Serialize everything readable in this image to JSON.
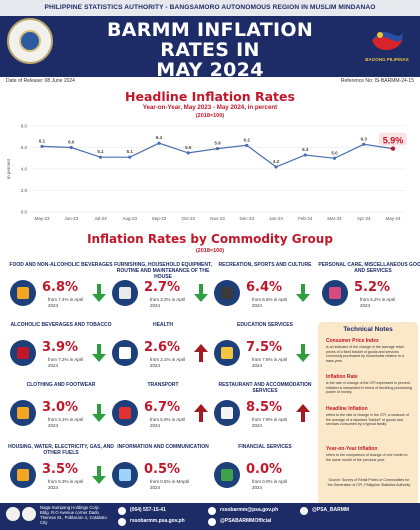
{
  "header": {
    "agency": "PHILIPPINE STATISTICS AUTHORITY - BANGSAMORO AUTONOMOUS REGION IN MUSLIM MINDANAO",
    "title_line1": "BARMM INFLATION RATES IN",
    "title_line2": "MAY 2024",
    "seal_caption": "BAGONG PILIPINAS"
  },
  "meta": {
    "release": "Date of Release: 08 June 2024",
    "reference": "Reference No: IS-BARMM-24-15"
  },
  "headline": {
    "title": "Headline Inflation Rates",
    "subtitle": "Year-on-Year, May 2023 - May 2024, in percent",
    "base": "(2018=100)"
  },
  "chart_data": {
    "type": "line",
    "ylabel": "in percent",
    "ylim": [
      0,
      8
    ],
    "yticks": [
      "0.0",
      "2.0",
      "4.0",
      "6.0",
      "8.0"
    ],
    "categories": [
      "May-23",
      "Jun-23",
      "Jul-23",
      "Aug-23",
      "Sep-23",
      "Oct-23",
      "Nov-23",
      "Dec-23",
      "Jan-24",
      "Feb-24",
      "Mar-24",
      "Apr-24",
      "May-24"
    ],
    "values": [
      6.1,
      6.0,
      5.1,
      5.1,
      6.4,
      5.5,
      5.9,
      6.2,
      4.2,
      5.3,
      5.0,
      6.3,
      5.9
    ],
    "labels": [
      "6.1",
      "6.0",
      "5.1",
      "5.1",
      "6.4",
      "5.5",
      "5.9",
      "6.2",
      "4.2",
      "5.3",
      "5.0",
      "6.3",
      "5.9%"
    ],
    "color": "#4a6fb0",
    "grid": true
  },
  "commodity": {
    "title": "Inflation Rates by Commodity Group",
    "base": "(2018=100)"
  },
  "groups": [
    {
      "title": "FOOD AND NON-ALCOHOLIC BEVERAGES",
      "value": "6.8%",
      "from": "from 7.4% in April 2024",
      "dir": "down",
      "icon": "food-basket-icon"
    },
    {
      "title": "FURNISHING, HOUSEHOLD EQUIPMENT, ROUTINE AND MAINTENANCE OF THE HOUSE",
      "value": "2.7%",
      "from": "from 3.2% in April 2024",
      "dir": "down",
      "icon": "washing-machine-icon"
    },
    {
      "title": "RECREATION, SPORTS AND CULTURE",
      "value": "6.4%",
      "from": "from 6.6% in April 2024",
      "dir": "down",
      "icon": "gamepad-icon"
    },
    {
      "title": "PERSONAL CARE, MISCELLANEOUS GOODS AND SERVICES",
      "value": "5.2%",
      "from": "from 5.2% in April 2024",
      "dir": "none",
      "icon": "cosmetics-icon"
    },
    {
      "title": "ALCOHOLIC BEVERAGES AND TOBACCO",
      "value": "3.9%",
      "from": "from 7.2% in April 2024",
      "dir": "down",
      "icon": "wine-glass-icon"
    },
    {
      "title": "HEALTH",
      "value": "2.6%",
      "from": "from 2.1% in April 2024",
      "dir": "up",
      "icon": "medicine-icon"
    },
    {
      "title": "EDUCATION SERVICES",
      "value": "7.5%",
      "from": "from 7.6% in April 2024",
      "dir": "down",
      "icon": "school-icon"
    },
    {
      "title": "CLOTHING AND FOOTWEAR",
      "value": "3.0%",
      "from": "from 3.1% in April 2024",
      "dir": "down",
      "icon": "shirt-icon"
    },
    {
      "title": "TRANSPORT",
      "value": "6.7%",
      "from": "from 5.0% in April 2024",
      "dir": "up",
      "icon": "car-icon"
    },
    {
      "title": "RESTAURANT AND ACCOMMODATION SERVICES",
      "value": "8.5%",
      "from": "from 7.9% in April 2024",
      "dir": "up",
      "icon": "restaurant-icon"
    },
    {
      "title": "HOUSING, WATER, ELECTRICITY, GAS, AND OTHER FUELS",
      "value": "3.5%",
      "from": "from 5.3% in April 2024",
      "dir": "down",
      "icon": "house-icon"
    },
    {
      "title": "INFORMATION AND COMMUNICATION",
      "value": "0.5%",
      "from": "from 0.5% in MApril 2024",
      "dir": "none",
      "icon": "phone-icon"
    },
    {
      "title": "FINANCIAL SERVICES",
      "value": "0.0%",
      "from": "from 0.0% in April 2024",
      "dir": "none",
      "icon": "money-icon"
    }
  ],
  "notes": {
    "title": "Technical Notes",
    "items": [
      {
        "head": "Consumer Price Index",
        "text": "is an indicator of the change in the average retail prices of a fixed basket of goods and services commonly purchased by households relative to a base year."
      },
      {
        "head": "Inflation Rate",
        "text": "is the rate of change of the CPI expressed in percent. Inflation is interpreted in terms of declining purchasing power of money."
      },
      {
        "head": "Headline Inflation",
        "text": "refers to the rate of change in the CPI, a measure of the average of a standard \"basket\" of goods and services consumed by a typical family."
      },
      {
        "head": "Year-on-Year Inflation",
        "text": "refers to the comparison of change of one month to the same month of the previous year."
      }
    ],
    "source": "Source: Survey of Retail Prices of Commodities for the Generation of CPI, Philippine Statistics Authority"
  },
  "footer": {
    "address": "Naga-Sumpang Holdings Corp. Bldg. R.O Avenue corner Dado Theresa St., Poblacion 4, Cotabato City",
    "phone": "(064) 557-15-41",
    "email": "rssobarmm@psa.gov.ph",
    "fb": "@PSA_BARMM",
    "web": "rssobarmm.psa.gov.ph",
    "fb2": "@PSABARMMOfficial"
  }
}
